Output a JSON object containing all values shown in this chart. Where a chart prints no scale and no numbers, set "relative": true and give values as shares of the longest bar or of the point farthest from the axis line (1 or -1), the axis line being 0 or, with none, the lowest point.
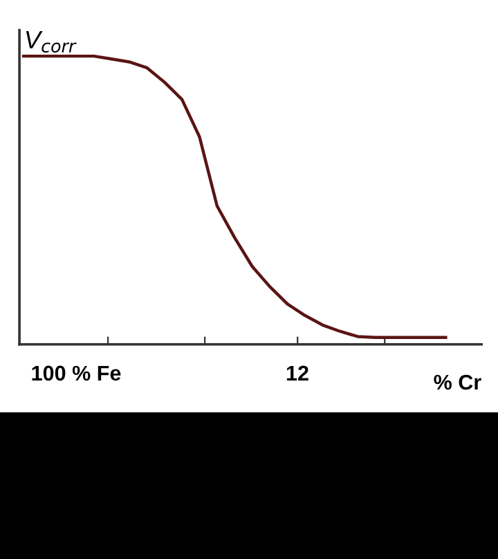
{
  "chart_data": {
    "type": "line",
    "relative": true,
    "ylabel": "V$_{corr}$",
    "xlabel": "% Cr",
    "annotations": [
      "100 % Fe",
      "12"
    ],
    "categories": [
      null,
      null,
      null,
      null,
      null,
      null,
      null,
      null,
      null,
      null,
      null,
      null,
      null,
      null,
      null,
      null,
      null,
      null,
      null,
      null,
      null,
      null,
      null,
      null,
      null
    ],
    "series": [
      {
        "color": "#5a1414",
        "values": [
          1.0,
          1.0,
          1.0,
          1.0,
          1.0,
          0.99,
          0.98,
          0.96,
          0.91,
          0.85,
          0.72,
          0.48,
          0.37,
          0.27,
          0.2,
          0.14,
          0.1,
          0.067,
          0.045,
          0.027,
          0.024,
          0.024,
          0.024,
          0.024,
          0.024
        ]
      }
    ],
    "grid": false,
    "legend": false,
    "marker": "none",
    "line_style": "solid"
  }
}
